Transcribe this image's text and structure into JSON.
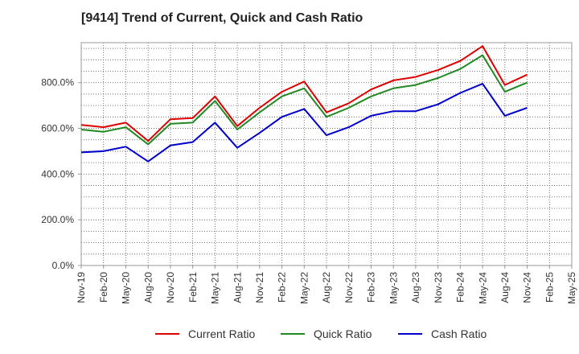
{
  "chart_data": {
    "type": "line",
    "title": "[9414]  Trend of Current, Quick and Cash Ratio",
    "xlabel": "",
    "ylabel": "",
    "ylim": [
      0,
      975
    ],
    "grid": true,
    "legend_position": "bottom",
    "y_ticks": [
      {
        "value": 0,
        "label": "0.0%"
      },
      {
        "value": 200,
        "label": "200.0%"
      },
      {
        "value": 400,
        "label": "400.0%"
      },
      {
        "value": 600,
        "label": "600.0%"
      },
      {
        "value": 800,
        "label": "800.0%"
      }
    ],
    "x_tick_labels": [
      "Nov-19",
      "Feb-20",
      "May-20",
      "Aug-20",
      "Nov-20",
      "Feb-21",
      "May-21",
      "Aug-21",
      "Nov-21",
      "Feb-22",
      "May-22",
      "Aug-22",
      "Nov-22",
      "Feb-23",
      "May-23",
      "Aug-23",
      "Nov-23",
      "Feb-24",
      "May-24",
      "Aug-24",
      "Nov-24",
      "Feb-25",
      "May-25"
    ],
    "x": [
      "Nov-19",
      "Feb-20",
      "May-20",
      "Aug-20",
      "Nov-20",
      "Feb-21",
      "May-21",
      "Aug-21",
      "Nov-21",
      "Feb-22",
      "May-22",
      "Aug-22",
      "Nov-22",
      "Feb-23",
      "May-23",
      "Aug-23",
      "Nov-23",
      "Feb-24",
      "May-24",
      "Aug-24",
      "Nov-24"
    ],
    "series": [
      {
        "name": "Current Ratio",
        "color": "#dd0000",
        "values": [
          615,
          605,
          625,
          545,
          640,
          645,
          740,
          610,
          690,
          760,
          805,
          670,
          710,
          770,
          810,
          825,
          855,
          895,
          960,
          790,
          835
        ]
      },
      {
        "name": "Quick Ratio",
        "color": "#228822",
        "values": [
          595,
          585,
          605,
          530,
          620,
          625,
          720,
          595,
          670,
          740,
          775,
          650,
          690,
          740,
          775,
          790,
          820,
          860,
          920,
          760,
          800
        ]
      },
      {
        "name": "Cash Ratio",
        "color": "#0000cc",
        "values": [
          495,
          500,
          520,
          455,
          525,
          540,
          625,
          515,
          580,
          650,
          685,
          570,
          605,
          655,
          675,
          675,
          705,
          755,
          795,
          655,
          690
        ]
      }
    ]
  }
}
